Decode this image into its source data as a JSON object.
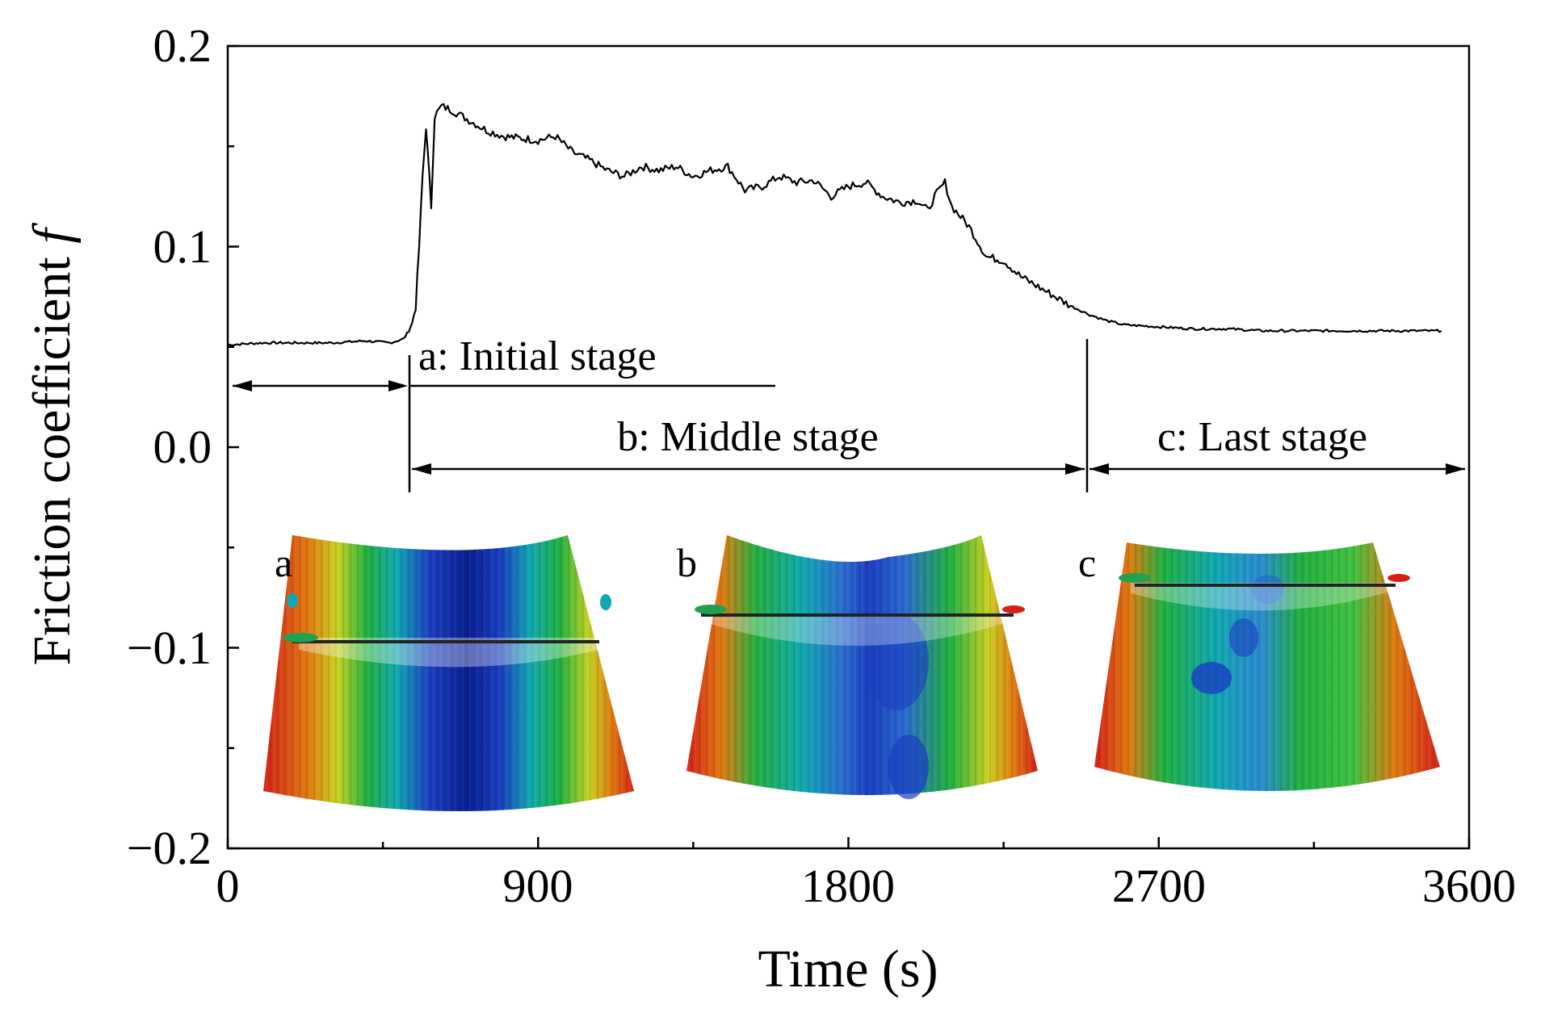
{
  "chart_data": {
    "type": "line",
    "title": "",
    "xlabel": "Time (s)",
    "ylabel_main": "Friction coefficient ",
    "ylabel_symbol": "f",
    "xlim": [
      0,
      3600
    ],
    "ylim": [
      -0.2,
      0.2
    ],
    "xticks": [
      0,
      900,
      1800,
      2700,
      3600
    ],
    "xtick_labels": [
      "0",
      "900",
      "1800",
      "2700",
      "3600"
    ],
    "yticks": [
      0.2,
      0.1,
      0.0,
      -0.1,
      -0.2
    ],
    "ytick_labels": [
      "0.2",
      "0.1",
      "0.0",
      "−0.1",
      "−0.2"
    ],
    "series": [
      {
        "name": "Friction coefficient",
        "color": "#000000",
        "x": [
          0,
          100,
          200,
          300,
          400,
          470,
          510,
          525,
          535,
          545,
          555,
          565,
          575,
          590,
          600,
          620,
          650,
          700,
          750,
          800,
          900,
          950,
          1000,
          1050,
          1100,
          1150,
          1200,
          1250,
          1300,
          1350,
          1400,
          1450,
          1500,
          1550,
          1600,
          1650,
          1700,
          1750,
          1800,
          1850,
          1900,
          1950,
          2000,
          2030,
          2050,
          2080,
          2100,
          2150,
          2200,
          2250,
          2300,
          2350,
          2400,
          2450,
          2500,
          2550,
          2600,
          2700,
          2800,
          2900,
          3000,
          3100,
          3200,
          3300,
          3400,
          3520
        ],
        "y": [
          0.051,
          0.052,
          0.052,
          0.052,
          0.053,
          0.052,
          0.054,
          0.058,
          0.062,
          0.07,
          0.1,
          0.135,
          0.16,
          0.12,
          0.165,
          0.17,
          0.168,
          0.163,
          0.158,
          0.155,
          0.153,
          0.155,
          0.147,
          0.143,
          0.138,
          0.135,
          0.14,
          0.138,
          0.14,
          0.135,
          0.138,
          0.14,
          0.128,
          0.13,
          0.135,
          0.132,
          0.133,
          0.125,
          0.13,
          0.132,
          0.125,
          0.122,
          0.123,
          0.118,
          0.125,
          0.132,
          0.12,
          0.11,
          0.095,
          0.093,
          0.085,
          0.08,
          0.075,
          0.07,
          0.066,
          0.063,
          0.061,
          0.06,
          0.059,
          0.059,
          0.058,
          0.058,
          0.058,
          0.058,
          0.058,
          0.058
        ]
      }
    ],
    "annotations": {
      "stage_a": "a: Initial stage",
      "stage_b": "b: Middle stage",
      "stage_c": "c: Last stage"
    },
    "stage_boundaries_x": [
      530,
      2490
    ],
    "insets": [
      {
        "label": "a",
        "description_color": "#1a3ebf"
      },
      {
        "label": "b",
        "description_color": "#2a6ad0"
      },
      {
        "label": "c",
        "description_color": "#2aa36a"
      }
    ]
  },
  "colors": {
    "axis": "#000000",
    "line": "#000000",
    "red": "#d42018",
    "orange": "#e07a10",
    "yellow": "#d8d020",
    "green": "#20b040",
    "cyan": "#10a8b0",
    "blue": "#1a3ebf",
    "darkblue": "#0a1e90"
  }
}
